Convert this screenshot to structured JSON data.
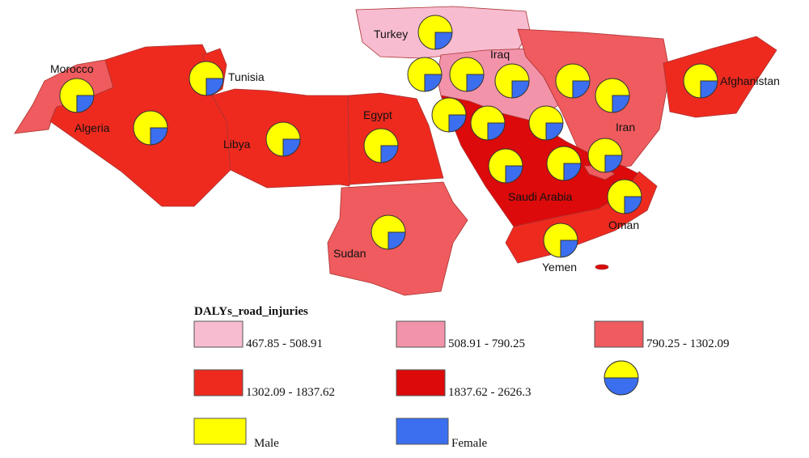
{
  "countries": {
    "turkey": "Turkey",
    "iraq": "Iraq",
    "morocco": "Morocco",
    "tunisia": "Tunisia",
    "algeria": "Algeria",
    "libya": "Libya",
    "egypt": "Egypt",
    "iran": "Iran",
    "afghanistan": "Afghanistan",
    "saudi_arabia": "Saudi Arabia",
    "oman": "Oman",
    "sudan": "Sudan",
    "yemen": "Yemen"
  },
  "legend": {
    "title": "DALYs_road_injuries",
    "classes": [
      {
        "label": "467.85 - 508.91",
        "color": "#f7bcd0"
      },
      {
        "label": "508.91 - 790.25",
        "color": "#f293aa"
      },
      {
        "label": "790.25 - 1302.09",
        "color": "#ef5b5e"
      },
      {
        "label": "1302.09 - 1837.62",
        "color": "#ee2a1f"
      },
      {
        "label": "1837.62 - 2626.3",
        "color": "#dc0a0a"
      }
    ],
    "male": "Male",
    "male_color": "#ffff00",
    "female": "Female",
    "female_color": "#3b6ff0"
  },
  "pies": [
    {
      "male": 75,
      "female": 25
    },
    {
      "male": 75,
      "female": 25
    },
    {
      "male": 75,
      "female": 25
    },
    {
      "male": 75,
      "female": 25
    },
    {
      "male": 75,
      "female": 25
    },
    {
      "male": 75,
      "female": 25
    },
    {
      "male": 75,
      "female": 25
    },
    {
      "male": 75,
      "female": 25
    },
    {
      "male": 75,
      "female": 25
    },
    {
      "male": 75,
      "female": 25
    },
    {
      "male": 75,
      "female": 25
    },
    {
      "male": 75,
      "female": 25
    },
    {
      "male": 75,
      "female": 25
    },
    {
      "male": 75,
      "female": 25
    },
    {
      "male": 75,
      "female": 25
    },
    {
      "male": 75,
      "female": 25
    },
    {
      "male": 75,
      "female": 25
    },
    {
      "male": 75,
      "female": 25
    },
    {
      "male": 75,
      "female": 25
    },
    {
      "male": 75,
      "female": 25
    },
    {
      "male": 75,
      "female": 25
    }
  ]
}
